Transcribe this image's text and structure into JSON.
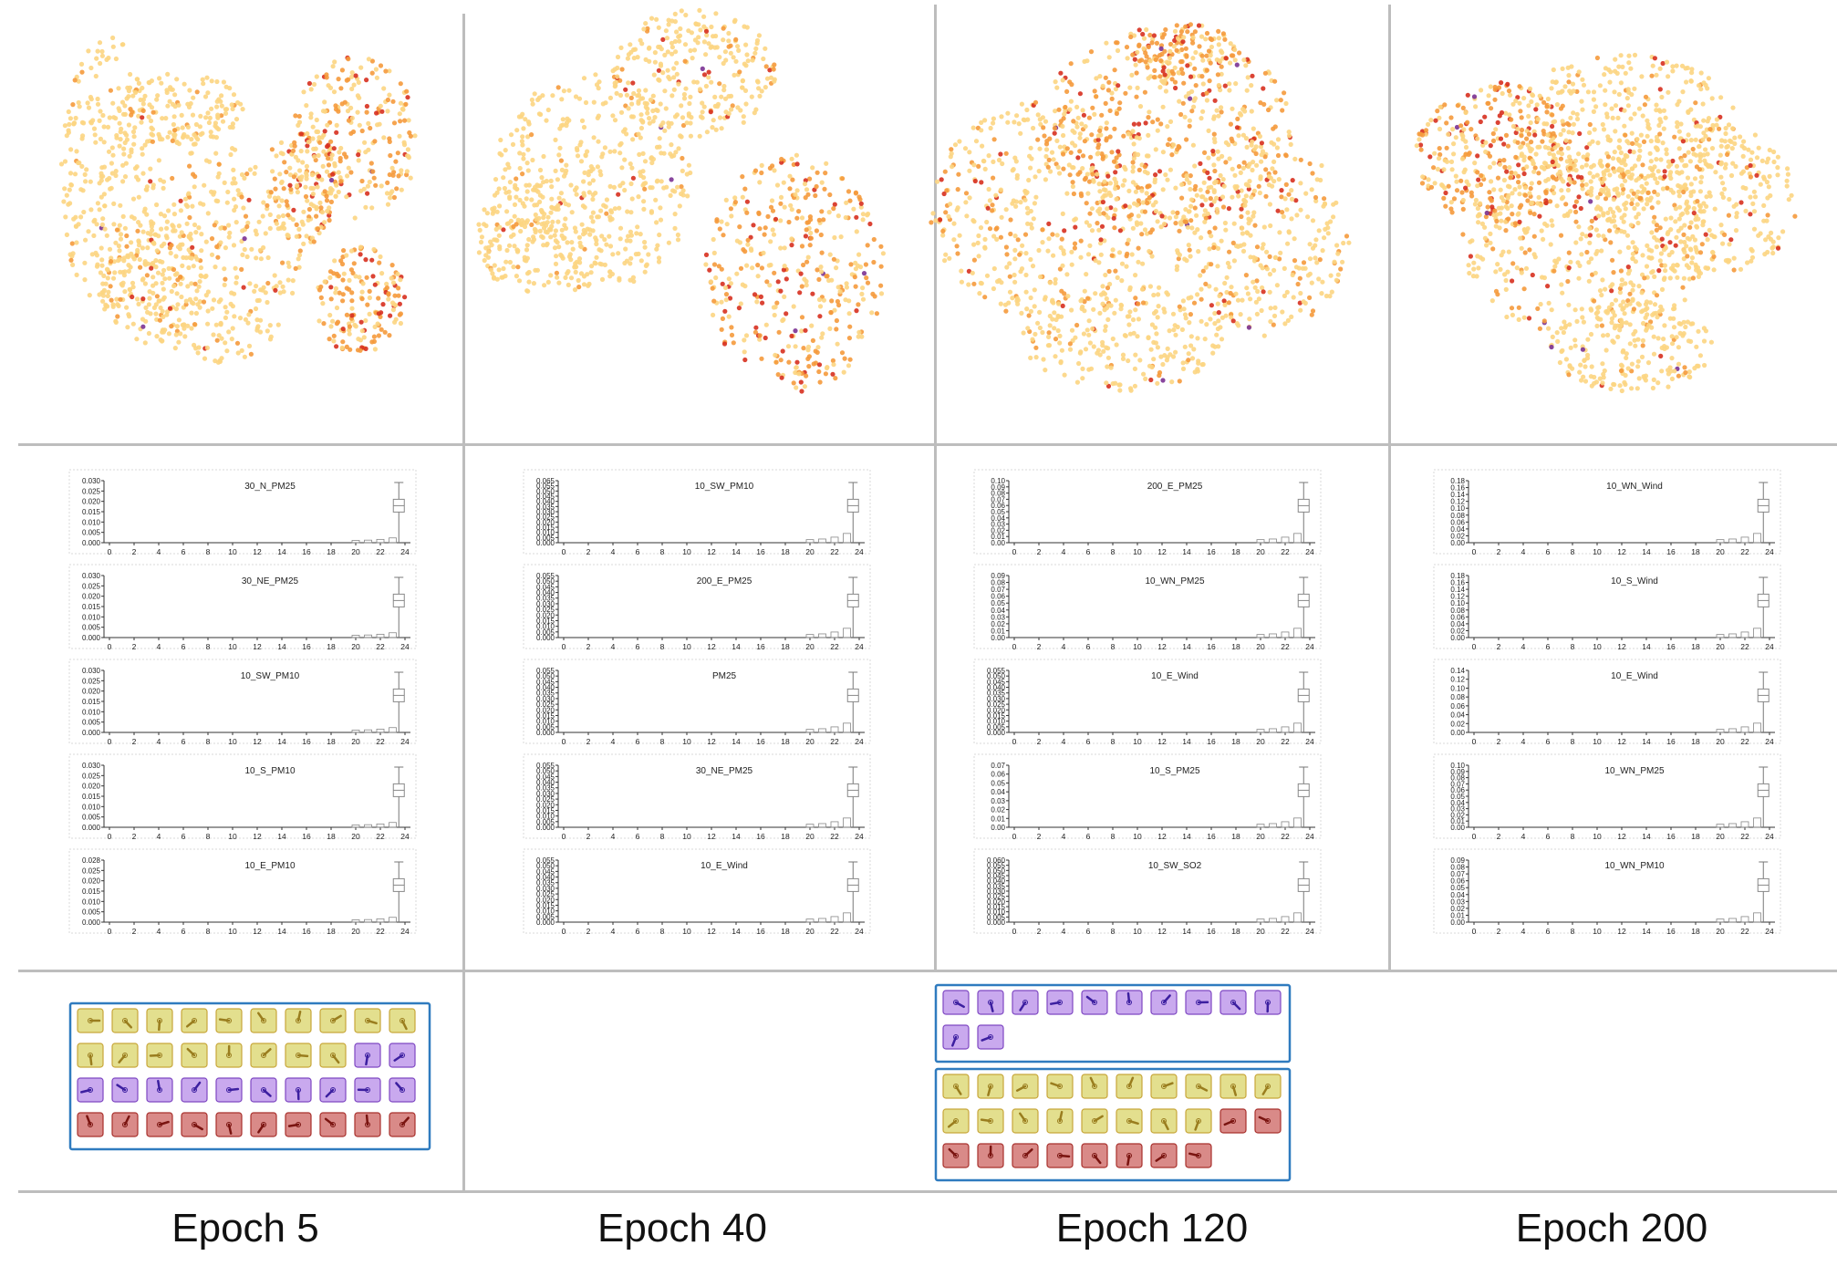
{
  "figure": {
    "epoch_labels": [
      "Epoch 5",
      "Epoch 40",
      "Epoch 120",
      "Epoch 200"
    ]
  },
  "colors": {
    "point_light": "#fcd582",
    "point_mid": "#f59a3c",
    "point_dark": "#d7301f",
    "point_purple": "#7b3294",
    "glyph_yellow_fill": "#e3df8e",
    "glyph_yellow_stroke": "#c8a63a",
    "glyph_purple_fill": "#c9a9ee",
    "glyph_purple_stroke": "#7e47c2",
    "glyph_red_fill": "#d98a88",
    "glyph_red_stroke": "#a8302c",
    "group_border": "#2f7bbf"
  },
  "chart_data": [
    {
      "type": "scatter",
      "columns": [
        {
          "epoch": "Epoch 5",
          "histograms": [
            {
              "title": "30_N_PM25",
              "yticks": [
                "0.000",
                "0.005",
                "0.010",
                "0.015",
                "0.020",
                "0.025",
                "0.030"
              ],
              "ymax": 0.032
            },
            {
              "title": "30_NE_PM25",
              "yticks": [
                "0.000",
                "0.005",
                "0.010",
                "0.015",
                "0.020",
                "0.025",
                "0.030"
              ],
              "ymax": 0.032
            },
            {
              "title": "10_SW_PM10",
              "yticks": [
                "0.000",
                "0.005",
                "0.010",
                "0.015",
                "0.020",
                "0.025",
                "0.030"
              ],
              "ymax": 0.032
            },
            {
              "title": "10_S_PM10",
              "yticks": [
                "0.000",
                "0.005",
                "0.010",
                "0.015",
                "0.020",
                "0.025",
                "0.030"
              ],
              "ymax": 0.032
            },
            {
              "title": "10_E_PM10",
              "yticks": [
                "0.000",
                "0.005",
                "0.010",
                "0.015",
                "0.020",
                "0.025",
                "0.028"
              ],
              "ymax": 0.03
            }
          ]
        },
        {
          "epoch": "Epoch 40",
          "histograms": [
            {
              "title": "10_SW_PM10",
              "yticks": [
                "0.000",
                "0.005",
                "0.010",
                "0.015",
                "0.020",
                "0.025",
                "0.030",
                "0.035",
                "0.040",
                "0.045",
                "0.050",
                "0.055",
                "0.065"
              ],
              "ymax": 0.066
            },
            {
              "title": "200_E_PM25",
              "yticks": [
                "0.000",
                "0.005",
                "0.010",
                "0.015",
                "0.020",
                "0.025",
                "0.030",
                "0.035",
                "0.040",
                "0.045",
                "0.050",
                "0.055"
              ],
              "ymax": 0.058
            },
            {
              "title": "PM25",
              "yticks": [
                "0.000",
                "0.005",
                "0.010",
                "0.015",
                "0.020",
                "0.025",
                "0.030",
                "0.035",
                "0.040",
                "0.045",
                "0.050",
                "0.055"
              ],
              "ymax": 0.058
            },
            {
              "title": "30_NE_PM25",
              "yticks": [
                "0.000",
                "0.005",
                "0.010",
                "0.015",
                "0.020",
                "0.025",
                "0.030",
                "0.035",
                "0.040",
                "0.045",
                "0.050",
                "0.055"
              ],
              "ymax": 0.058
            },
            {
              "title": "10_E_Wind",
              "yticks": [
                "0.000",
                "0.005",
                "0.010",
                "0.015",
                "0.020",
                "0.025",
                "0.030",
                "0.035",
                "0.040",
                "0.045",
                "0.050",
                "0.055"
              ],
              "ymax": 0.058
            }
          ]
        },
        {
          "epoch": "Epoch 120",
          "histograms": [
            {
              "title": "200_E_PM25",
              "yticks": [
                "0.00",
                "0.01",
                "0.02",
                "0.03",
                "0.04",
                "0.05",
                "0.06",
                "0.07",
                "0.08",
                "0.09",
                "0.10"
              ],
              "ymax": 0.105
            },
            {
              "title": "10_WN_PM25",
              "yticks": [
                "0.00",
                "0.01",
                "0.02",
                "0.03",
                "0.04",
                "0.05",
                "0.06",
                "0.07",
                "0.08",
                "0.09"
              ],
              "ymax": 0.095
            },
            {
              "title": "10_E_Wind",
              "yticks": [
                "0.000",
                "0.005",
                "0.010",
                "0.015",
                "0.020",
                "0.025",
                "0.030",
                "0.035",
                "0.040",
                "0.045",
                "0.050",
                "0.055"
              ],
              "ymax": 0.058
            },
            {
              "title": "10_S_PM25",
              "yticks": [
                "0.00",
                "0.01",
                "0.02",
                "0.03",
                "0.04",
                "0.05",
                "0.06",
                "0.07"
              ],
              "ymax": 0.075
            },
            {
              "title": "10_SW_SO2",
              "yticks": [
                "0.000",
                "0.005",
                "0.010",
                "0.015",
                "0.020",
                "0.025",
                "0.030",
                "0.035",
                "0.040",
                "0.045",
                "0.050",
                "0.055",
                "0.060"
              ],
              "ymax": 0.062
            }
          ]
        },
        {
          "epoch": "Epoch 200",
          "histograms": [
            {
              "title": "10_WN_Wind",
              "yticks": [
                "0.00",
                "0.02",
                "0.04",
                "0.06",
                "0.08",
                "0.10",
                "0.12",
                "0.14",
                "0.16",
                "0.18"
              ],
              "ymax": 0.19
            },
            {
              "title": "10_S_Wind",
              "yticks": [
                "0.00",
                "0.02",
                "0.04",
                "0.06",
                "0.08",
                "0.10",
                "0.12",
                "0.14",
                "0.16",
                "0.18"
              ],
              "ymax": 0.19
            },
            {
              "title": "10_E_Wind",
              "yticks": [
                "0.00",
                "0.02",
                "0.04",
                "0.06",
                "0.08",
                "0.10",
                "0.12",
                "0.14"
              ],
              "ymax": 0.15
            },
            {
              "title": "10_WN_PM25",
              "yticks": [
                "0.00",
                "0.01",
                "0.02",
                "0.03",
                "0.04",
                "0.05",
                "0.06",
                "0.07",
                "0.08",
                "0.09",
                "0.10"
              ],
              "ymax": 0.105
            },
            {
              "title": "10_WN_PM10",
              "yticks": [
                "0.00",
                "0.01",
                "0.02",
                "0.03",
                "0.04",
                "0.05",
                "0.06",
                "0.07",
                "0.08",
                "0.09"
              ],
              "ymax": 0.095
            }
          ]
        }
      ],
      "xticks": [
        "0",
        "2",
        "4",
        "6",
        "8",
        "10",
        "12",
        "14",
        "16",
        "18",
        "20",
        "22",
        "24"
      ],
      "xlim": [
        0,
        24
      ],
      "glyph_groups": [
        {
          "epoch": "Epoch 5",
          "rows": [
            [
              "yellow",
              "yellow",
              "yellow",
              "yellow",
              "yellow",
              "yellow",
              "yellow",
              "yellow",
              "yellow",
              "yellow"
            ],
            [
              "yellow",
              "yellow",
              "yellow",
              "yellow",
              "yellow",
              "yellow",
              "yellow",
              "yellow",
              "purple",
              "purple"
            ],
            [
              "purple",
              "purple",
              "purple",
              "purple",
              "purple",
              "purple",
              "purple",
              "purple",
              "purple",
              "purple"
            ],
            [
              "red",
              "red",
              "red",
              "red",
              "red",
              "red",
              "red",
              "red",
              "red",
              "red"
            ]
          ]
        },
        {
          "epoch": "Epoch 120",
          "rows": [
            [
              "purple",
              "purple",
              "purple",
              "purple",
              "purple",
              "purple",
              "purple",
              "purple",
              "purple",
              "purple"
            ],
            [
              "purple",
              "purple"
            ]
          ]
        },
        {
          "epoch": "Epoch 120",
          "rows": [
            [
              "yellow",
              "yellow",
              "yellow",
              "yellow",
              "yellow",
              "yellow",
              "yellow",
              "yellow",
              "yellow",
              "yellow"
            ],
            [
              "yellow",
              "yellow",
              "yellow",
              "yellow",
              "yellow",
              "yellow",
              "yellow",
              "yellow",
              "red",
              "red"
            ],
            [
              "red",
              "red",
              "red",
              "red",
              "red",
              "red",
              "red",
              "red"
            ]
          ]
        }
      ]
    }
  ]
}
